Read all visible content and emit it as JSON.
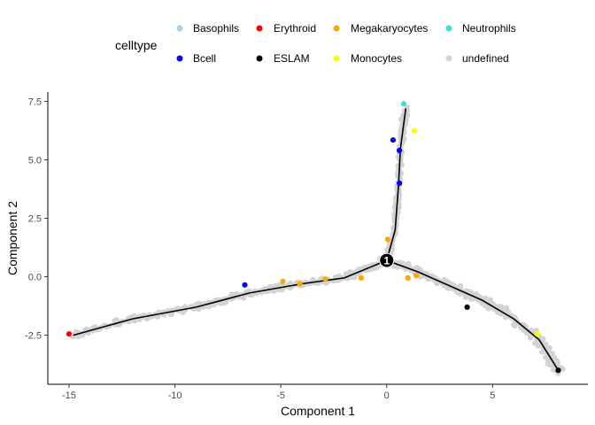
{
  "chart_data": {
    "type": "scatter",
    "title": "",
    "xlabel": "Component 1",
    "ylabel": "Component 2",
    "xlim": [
      -16,
      9.5
    ],
    "ylim": [
      -4.6,
      7.9
    ],
    "xticks": [
      -15,
      -10,
      -5,
      0,
      5
    ],
    "yticks": [
      -2.5,
      0.0,
      2.5,
      5.0,
      7.5
    ],
    "xtick_labels": [
      "-15",
      "-10",
      "-5",
      "0",
      "5"
    ],
    "ytick_labels": [
      "-2.5",
      "0.0",
      "2.5",
      "5.0",
      "7.5"
    ],
    "grid": false,
    "legend": {
      "title": "celltype",
      "position": "top",
      "entries": [
        {
          "name": "Basophils",
          "color": "#a6d2e8"
        },
        {
          "name": "Erythroid",
          "color": "#ff0000"
        },
        {
          "name": "Megakaryocytes",
          "color": "#ffa500"
        },
        {
          "name": "Neutrophils",
          "color": "#40e0d0"
        },
        {
          "name": "Bcell",
          "color": "#0000ff"
        },
        {
          "name": "ESLAM",
          "color": "#000000"
        },
        {
          "name": "Monocytes",
          "color": "#ffff00"
        },
        {
          "name": "undefined",
          "color": "#d3d3d3"
        }
      ]
    },
    "branch_point": {
      "label": "1",
      "x": 0,
      "y": 0.7
    },
    "trajectory": [
      [
        [
          -14.8,
          -2.5
        ],
        [
          -12,
          -1.8
        ],
        [
          -9,
          -1.3
        ],
        [
          -6.5,
          -0.7
        ],
        [
          -4,
          -0.3
        ],
        [
          -2,
          -0.05
        ],
        [
          0,
          0.7
        ]
      ],
      [
        [
          0,
          0.7
        ],
        [
          0.4,
          2.0
        ],
        [
          0.55,
          3.8
        ],
        [
          0.65,
          5.5
        ],
        [
          0.9,
          7.2
        ]
      ],
      [
        [
          0,
          0.7
        ],
        [
          1.5,
          0.2
        ],
        [
          3,
          -0.4
        ],
        [
          4.5,
          -1.0
        ],
        [
          6,
          -1.8
        ],
        [
          7.2,
          -2.7
        ],
        [
          8.1,
          -4.0
        ]
      ]
    ],
    "series": [
      {
        "name": "Bcell",
        "color": "#0000ff",
        "points": [
          [
            0.3,
            5.85
          ],
          [
            0.6,
            5.4
          ],
          [
            0.6,
            4.0
          ],
          [
            -6.7,
            -0.35
          ]
        ]
      },
      {
        "name": "Megakaryocytes",
        "color": "#ffa500",
        "points": [
          [
            0.05,
            1.6
          ],
          [
            -1.2,
            -0.05
          ],
          [
            -2.9,
            -0.1
          ],
          [
            -4.1,
            -0.3
          ],
          [
            -4.9,
            -0.2
          ],
          [
            1.4,
            0.05
          ],
          [
            1.0,
            -0.05
          ]
        ]
      },
      {
        "name": "Monocytes",
        "color": "#ffff00",
        "points": [
          [
            1.3,
            6.25
          ],
          [
            7.1,
            -2.45
          ]
        ]
      },
      {
        "name": "ESLAM",
        "color": "#000000",
        "points": [
          [
            3.8,
            -1.3
          ],
          [
            8.1,
            -4.0
          ]
        ]
      },
      {
        "name": "Erythroid",
        "color": "#ff0000",
        "points": [
          [
            -15.0,
            -2.45
          ]
        ]
      },
      {
        "name": "Neutrophils",
        "color": "#40e0d0",
        "points": [
          [
            0.8,
            7.4
          ]
        ]
      }
    ]
  }
}
